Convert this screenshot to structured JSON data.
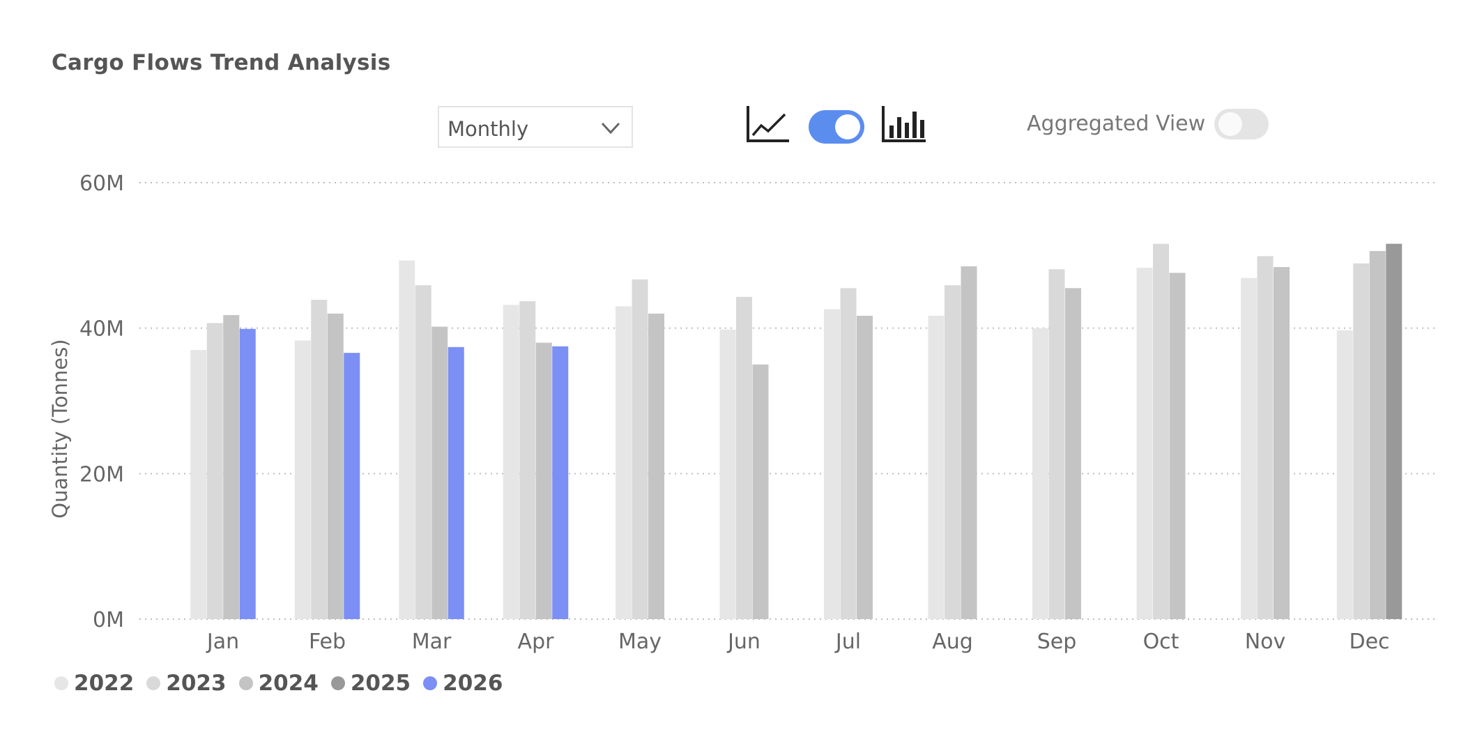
{
  "header": {
    "title": "Cargo Flows Trend Analysis"
  },
  "controls": {
    "period_dropdown": {
      "value": "Monthly"
    },
    "line_chart_icon": "line-chart-icon",
    "chart_type_toggle": {
      "on": true,
      "color": "#5b8def"
    },
    "bar_chart_icon": "bar-chart-icon",
    "aggregated_view": {
      "label": "Aggregated View",
      "on": false
    }
  },
  "chart_data": {
    "type": "bar",
    "title": "",
    "ylabel": "Quantity (Tonnes)",
    "xlabel": "",
    "ylim": [
      0,
      60
    ],
    "y_ticks": [
      "0M",
      "20M",
      "40M",
      "60M"
    ],
    "grid": true,
    "legend_position": "bottom-left",
    "categories": [
      "Jan",
      "Feb",
      "Mar",
      "Apr",
      "May",
      "Jun",
      "Jul",
      "Aug",
      "Sep",
      "Oct",
      "Nov",
      "Dec"
    ],
    "series": [
      {
        "name": "2022",
        "color": "#e6e6e6",
        "values": [
          37,
          38.3,
          49.3,
          43.2,
          43,
          39.8,
          42.6,
          41.7,
          40,
          48.3,
          46.9,
          39.7
        ]
      },
      {
        "name": "2023",
        "color": "#d9d9d9",
        "values": [
          40.7,
          43.9,
          45.9,
          43.7,
          46.7,
          44.3,
          45.5,
          45.9,
          48.1,
          51.6,
          49.9,
          48.9
        ]
      },
      {
        "name": "2024",
        "color": "#c4c4c4",
        "values": [
          41.8,
          42,
          40.2,
          38,
          42,
          35,
          41.7,
          48.5,
          45.5,
          47.6,
          48.4,
          50.6
        ]
      },
      {
        "name": "2025",
        "color": "#999999",
        "values": [
          null,
          null,
          null,
          null,
          null,
          null,
          null,
          null,
          null,
          null,
          null,
          51.6
        ]
      },
      {
        "name": "2026",
        "color": "#7b8ff5",
        "values": [
          39.9,
          36.6,
          37.4,
          37.5,
          null,
          null,
          null,
          null,
          null,
          null,
          null,
          null
        ]
      }
    ]
  }
}
